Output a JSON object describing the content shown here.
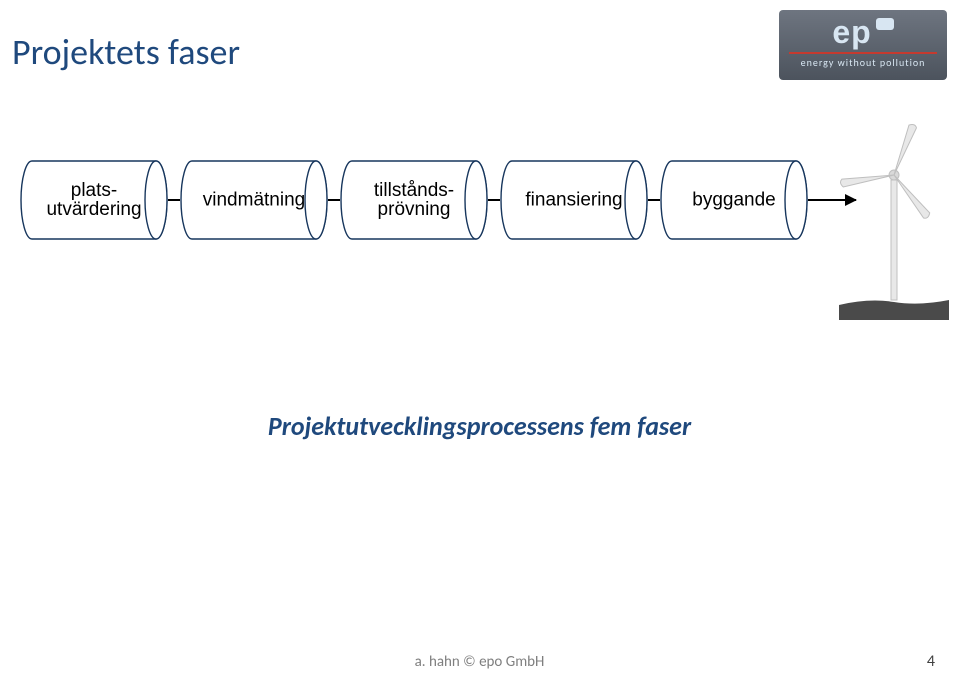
{
  "title": "Projektets faser",
  "logo": {
    "brand": "ep",
    "tagline": "energy without pollution"
  },
  "stages": [
    {
      "line1": "plats-",
      "line2": "utvärdering"
    },
    {
      "line1": "vindmätning",
      "line2": ""
    },
    {
      "line1": "tillstånds-",
      "line2": "prövning"
    },
    {
      "line1": "finansiering",
      "line2": ""
    },
    {
      "line1": "byggande",
      "line2": ""
    }
  ],
  "caption": "Projektutvecklingsprocessens fem faser",
  "footer": "a. hahn © epo GmbH",
  "page_number": "4",
  "style": {
    "type": "flowchart",
    "title_color": "#1f497d",
    "title_fontsize": 36,
    "stage_count": 5,
    "stage_width": 148,
    "stage_height": 80,
    "stage_fill": "#ffffff",
    "stage_stroke": "#17365d",
    "stage_stroke_width": 1.4,
    "stage_label_color": "#000000",
    "stage_label_fontsize": 19,
    "connector_color": "#000000",
    "connector_width": 2,
    "arrow_length": 48,
    "caption_color": "#1f497d",
    "caption_fontsize": 26,
    "caption_italic": true,
    "footer_color": "#7f7f7f",
    "footer_fontsize": 15,
    "background_color": "#ffffff",
    "logo_bg_from": "#6e7580",
    "logo_bg_to": "#4c535d",
    "logo_text_color": "#d8e6f2",
    "logo_accent": "#c53a2f",
    "turbine_stroke": "#bfbfbf",
    "turbine_fill": "#e8e8e8",
    "ground_fill": "#4a4a4a"
  }
}
